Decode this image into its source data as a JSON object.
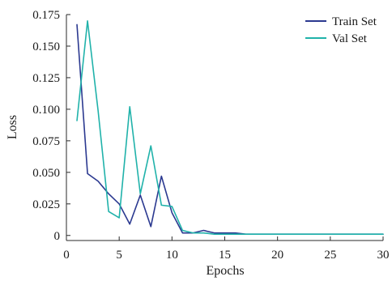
{
  "chart_data": {
    "type": "line",
    "title": "",
    "xlabel": "Epochs",
    "ylabel": "Loss",
    "xlim": [
      0,
      30
    ],
    "ylim": [
      -0.004,
      0.175
    ],
    "x_ticks": [
      0,
      5,
      10,
      15,
      20,
      25,
      30
    ],
    "x_tick_labels": [
      "0",
      "5",
      "10",
      "15",
      "20",
      "25",
      "30"
    ],
    "y_ticks": [
      0,
      0.025,
      0.05,
      0.075,
      0.1,
      0.125,
      0.15,
      0.175
    ],
    "y_tick_labels": [
      "0",
      "0.025",
      "0.050",
      "0.075",
      "0.100",
      "0.125",
      "0.150",
      "0.175"
    ],
    "grid": false,
    "legend_position": "top-right",
    "series": [
      {
        "name": "Train Set",
        "color": "#2b3990",
        "x": [
          1,
          2,
          3,
          4,
          5,
          6,
          7,
          8,
          9,
          10,
          11,
          12,
          13,
          14,
          15,
          16,
          17,
          18,
          19,
          20,
          21,
          22,
          23,
          24,
          25,
          26,
          27,
          28,
          29,
          30
        ],
        "values": [
          0.167,
          0.049,
          0.043,
          0.033,
          0.025,
          0.009,
          0.032,
          0.007,
          0.047,
          0.018,
          0.002,
          0.002,
          0.004,
          0.002,
          0.002,
          0.002,
          0.001,
          0.001,
          0.001,
          0.001,
          0.001,
          0.001,
          0.001,
          0.001,
          0.001,
          0.001,
          0.001,
          0.001,
          0.001,
          0.001
        ]
      },
      {
        "name": "Val Set",
        "color": "#20b2aa",
        "x": [
          1,
          2,
          3,
          4,
          5,
          6,
          7,
          8,
          9,
          10,
          11,
          12,
          13,
          14,
          15,
          16,
          17,
          18,
          19,
          20,
          21,
          22,
          23,
          24,
          25,
          26,
          27,
          28,
          29,
          30
        ],
        "values": [
          0.091,
          0.17,
          0.099,
          0.019,
          0.014,
          0.102,
          0.033,
          0.071,
          0.024,
          0.023,
          0.004,
          0.002,
          0.002,
          0.001,
          0.001,
          0.001,
          0.001,
          0.001,
          0.001,
          0.001,
          0.001,
          0.001,
          0.001,
          0.001,
          0.001,
          0.001,
          0.001,
          0.001,
          0.001,
          0.001
        ]
      }
    ]
  }
}
